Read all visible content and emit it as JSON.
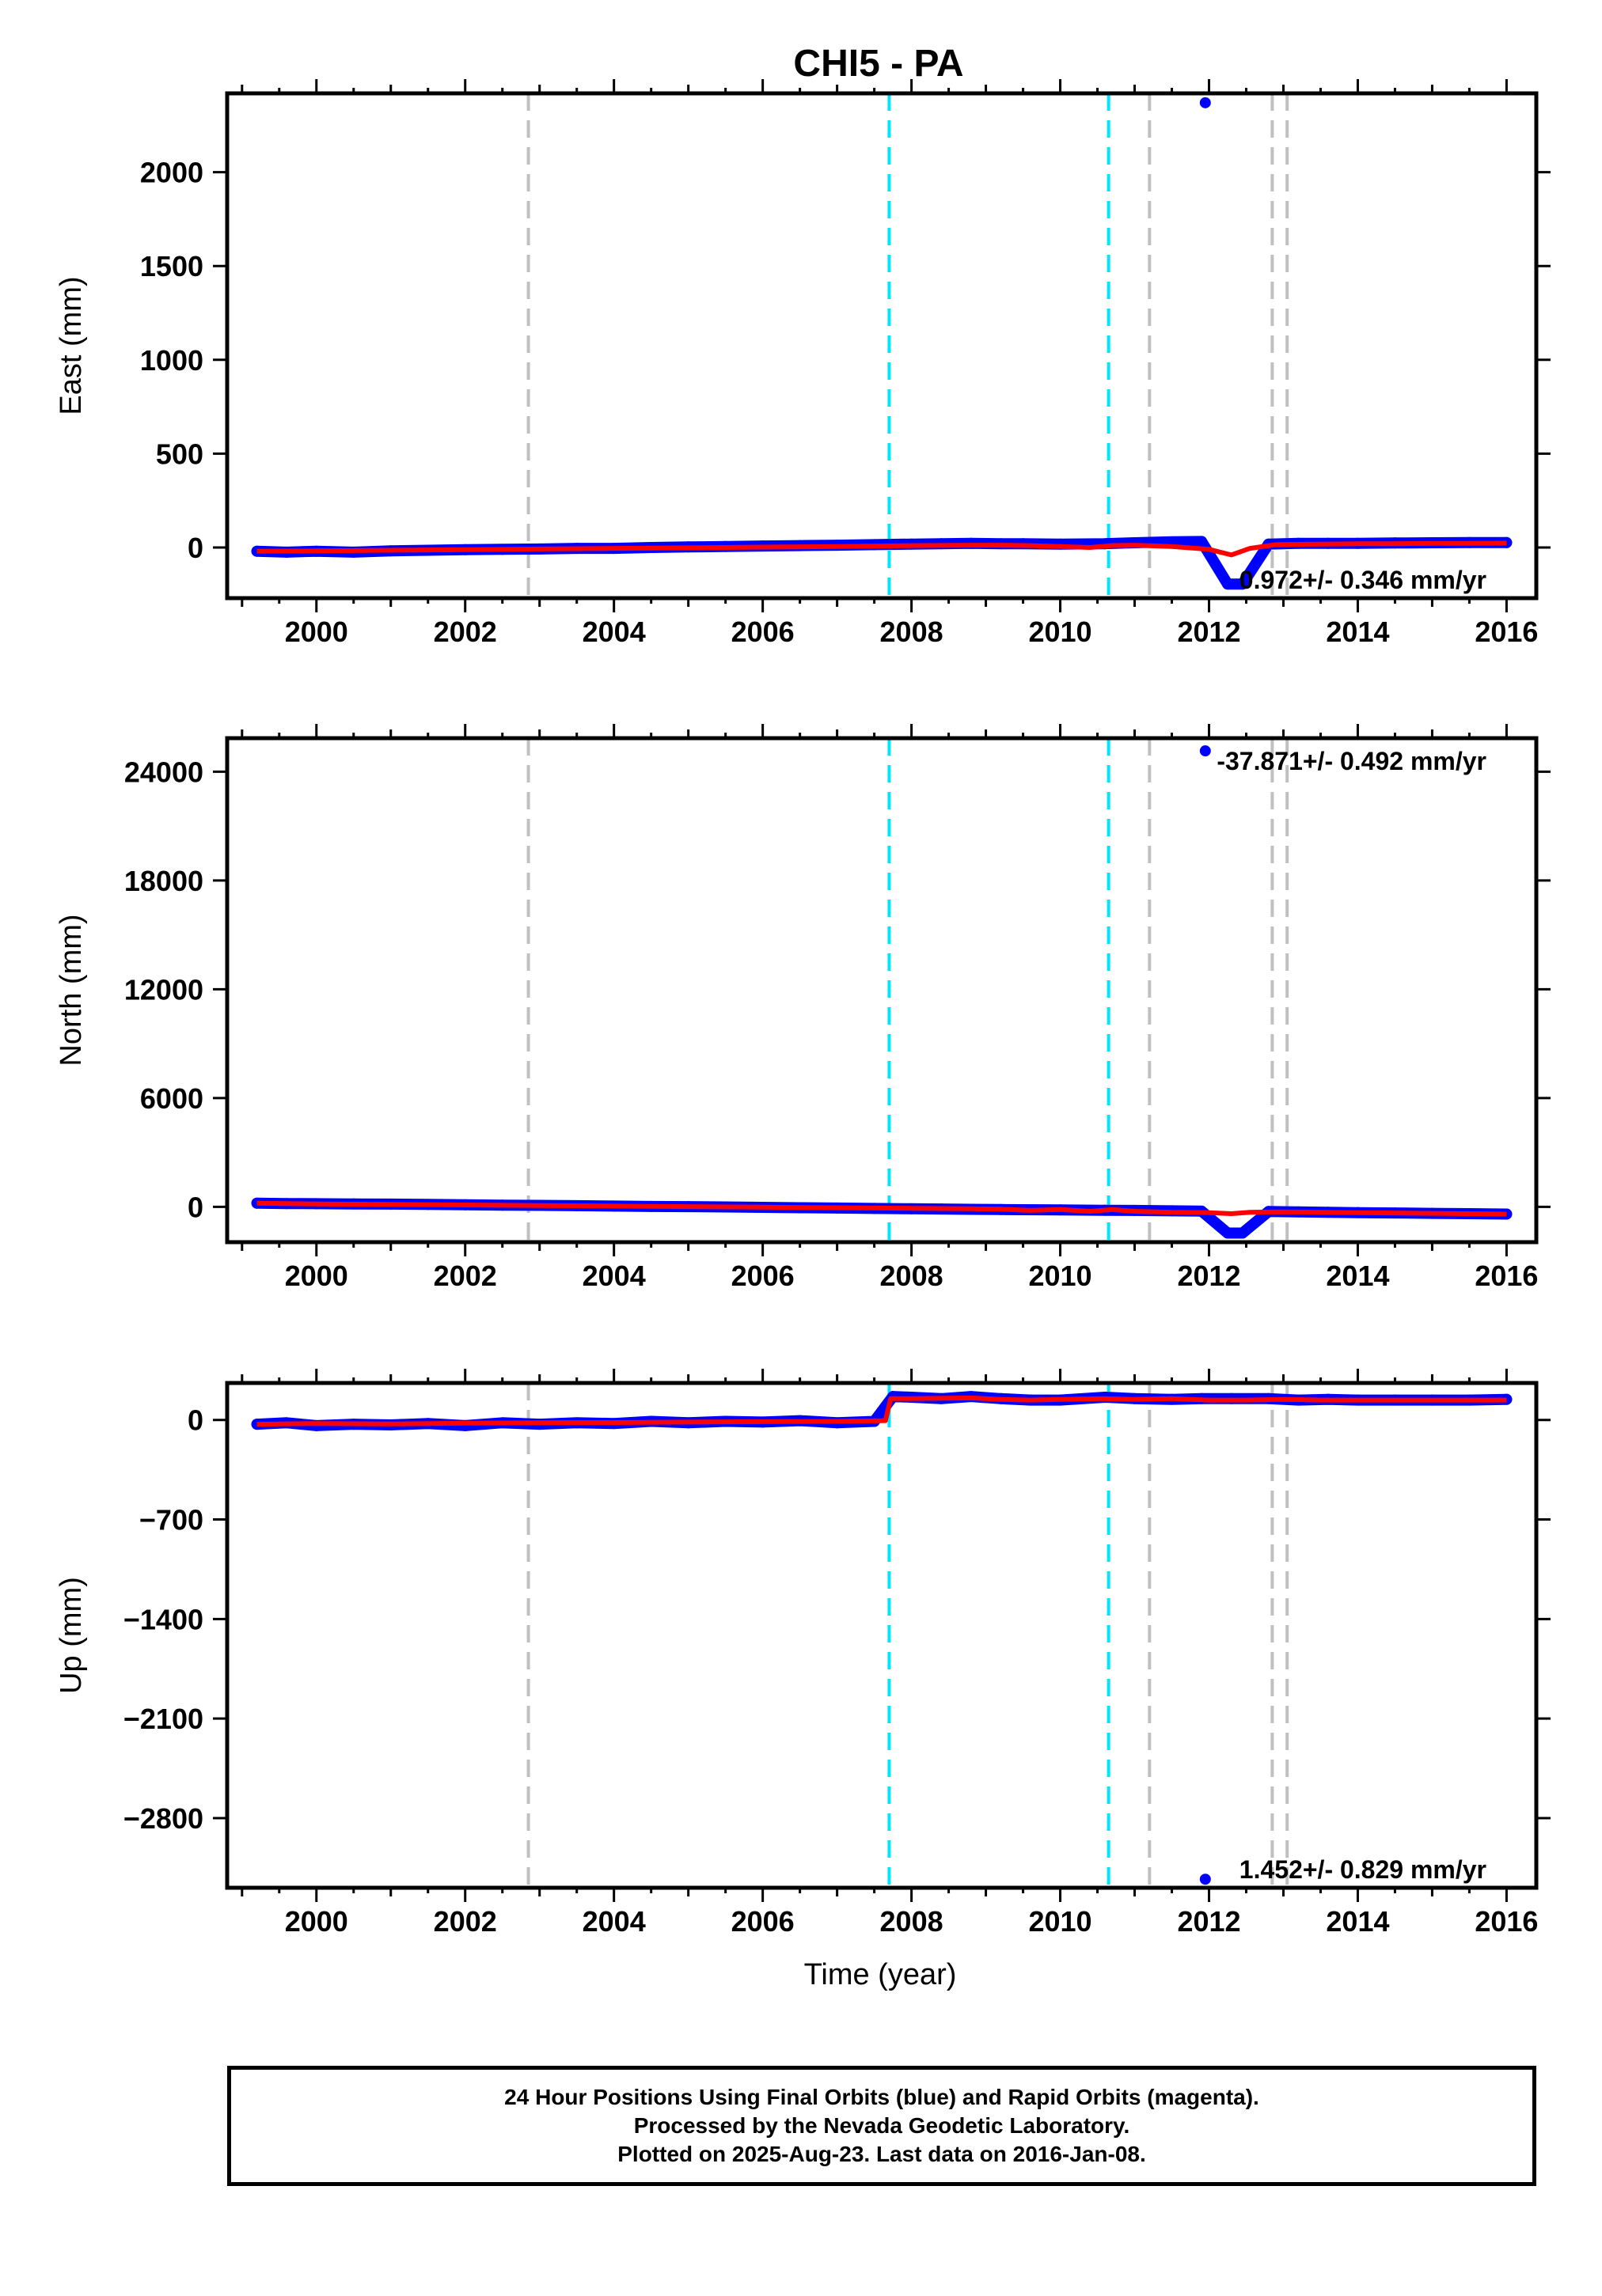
{
  "title": "CHI5 - PA",
  "colors": {
    "final_orbits": "#0000ff",
    "model": "#ff0000",
    "event_cyan": "#00e5ff",
    "event_gray": "#c0c0c0"
  },
  "chart_data": [
    {
      "type": "scatter",
      "ylabel": "East (mm)",
      "xlabel": "",
      "xlim": [
        1998.8,
        2016.4
      ],
      "ylim": [
        -270,
        2420
      ],
      "yticks": [
        0,
        500,
        1000,
        1500,
        2000
      ],
      "ytick_labels": [
        "0",
        "500",
        "1000",
        "1500",
        "2000"
      ],
      "xticks": [
        2000,
        2002,
        2004,
        2006,
        2008,
        2010,
        2012,
        2014,
        2016
      ],
      "xtick_labels": [
        "2000",
        "2002",
        "2004",
        "2006",
        "2008",
        "2010",
        "2012",
        "2014",
        "2016"
      ],
      "annotation": "0.972+/- 0.346 mm/yr",
      "series": [
        {
          "kind": "points",
          "x": [
            1999.2,
            1999.6,
            2000.0,
            2000.5,
            2001.0,
            2001.5,
            2002.0,
            2002.5,
            2003.0,
            2003.5,
            2004.0,
            2004.5,
            2005.0,
            2005.5,
            2006.0,
            2006.5,
            2007.0,
            2007.5,
            2008.0,
            2008.4,
            2008.8,
            2009.2,
            2009.5,
            2010.0,
            2010.6,
            2011.0,
            2011.5,
            2011.9,
            2012.25,
            2012.45,
            2012.8,
            2013.2,
            2013.6,
            2014.0,
            2014.5,
            2015.0,
            2015.5,
            2016.0
          ],
          "y": [
            -20,
            -25,
            -20,
            -25,
            -18,
            -15,
            -12,
            -10,
            -8,
            -5,
            -5,
            0,
            3,
            5,
            8,
            10,
            12,
            15,
            18,
            20,
            22,
            20,
            20,
            18,
            20,
            25,
            30,
            32,
            -195,
            -195,
            18,
            22,
            22,
            22,
            24,
            25,
            26,
            26
          ]
        },
        {
          "kind": "outlier",
          "x": [
            2011.95
          ],
          "y": [
            2370
          ]
        },
        {
          "kind": "model",
          "x": [
            1999.2,
            2000.0,
            2001.0,
            2002.0,
            2003.0,
            2004.0,
            2005.0,
            2006.0,
            2007.0,
            2008.0,
            2008.8,
            2009.2,
            2009.6,
            2010.0,
            2010.4,
            2010.7,
            2011.0,
            2011.5,
            2012.0,
            2012.3,
            2012.55,
            2012.9,
            2013.5,
            2014.0,
            2014.5,
            2015.0,
            2015.5,
            2016.0
          ],
          "y": [
            -20,
            -18,
            -15,
            -12,
            -8,
            -5,
            -2,
            2,
            5,
            10,
            12,
            12,
            10,
            5,
            0,
            10,
            12,
            5,
            -10,
            -40,
            -5,
            15,
            18,
            20,
            20,
            22,
            22,
            23
          ]
        }
      ],
      "events_cyan": [
        2007.7,
        2010.65
      ],
      "events_gray": [
        2002.85,
        2011.2,
        2012.85,
        2013.05
      ]
    },
    {
      "type": "scatter",
      "ylabel": "North (mm)",
      "xlabel": "",
      "xlim": [
        1998.8,
        2016.4
      ],
      "ylim": [
        -1950,
        25850
      ],
      "yticks": [
        0,
        6000,
        12000,
        18000,
        24000
      ],
      "ytick_labels": [
        "0",
        "6000",
        "12000",
        "18000",
        "24000"
      ],
      "xticks": [
        2000,
        2002,
        2004,
        2006,
        2008,
        2010,
        2012,
        2014,
        2016
      ],
      "xtick_labels": [
        "2000",
        "2002",
        "2004",
        "2006",
        "2008",
        "2010",
        "2012",
        "2014",
        "2016"
      ],
      "annotation": "-37.871+/- 0.492 mm/yr",
      "series": [
        {
          "kind": "points",
          "x": [
            1999.2,
            1999.6,
            2000.0,
            2000.5,
            2001.0,
            2001.5,
            2002.0,
            2002.5,
            2003.0,
            2003.5,
            2004.0,
            2004.5,
            2005.0,
            2005.5,
            2006.0,
            2006.5,
            2007.0,
            2007.5,
            2008.0,
            2008.4,
            2008.8,
            2009.2,
            2009.5,
            2010.0,
            2010.6,
            2011.0,
            2011.5,
            2011.9,
            2012.25,
            2012.45,
            2012.8,
            2013.2,
            2013.6,
            2014.0,
            2014.5,
            2015.0,
            2015.5,
            2016.0
          ],
          "y": [
            200,
            180,
            170,
            160,
            150,
            130,
            110,
            90,
            80,
            60,
            40,
            20,
            10,
            -10,
            -30,
            -50,
            -70,
            -90,
            -110,
            -120,
            -140,
            -150,
            -160,
            -170,
            -190,
            -200,
            -220,
            -240,
            -1450,
            -1450,
            -260,
            -280,
            -300,
            -320,
            -340,
            -360,
            -380,
            -400
          ]
        },
        {
          "kind": "outlier",
          "x": [
            2011.95
          ],
          "y": [
            25150
          ]
        },
        {
          "kind": "model",
          "x": [
            1999.2,
            2000.0,
            2001.0,
            2002.0,
            2003.0,
            2004.0,
            2005.0,
            2006.0,
            2007.0,
            2008.0,
            2008.8,
            2009.2,
            2009.6,
            2010.0,
            2010.4,
            2010.7,
            2011.0,
            2011.5,
            2012.0,
            2012.3,
            2012.55,
            2012.9,
            2013.5,
            2014.0,
            2014.5,
            2015.0,
            2015.5,
            2016.0
          ],
          "y": [
            200,
            160,
            130,
            100,
            70,
            40,
            10,
            -20,
            -50,
            -80,
            -110,
            -130,
            -200,
            -150,
            -250,
            -150,
            -250,
            -300,
            -320,
            -380,
            -300,
            -280,
            -300,
            -320,
            -340,
            -360,
            -380,
            -400
          ]
        }
      ],
      "events_cyan": [
        2007.7,
        2010.65
      ],
      "events_gray": [
        2002.85,
        2011.2,
        2012.85,
        2013.05
      ]
    },
    {
      "type": "scatter",
      "ylabel": "Up (mm)",
      "xlabel": "Time (year)",
      "xlim": [
        1998.8,
        2016.4
      ],
      "ylim": [
        -3290,
        260
      ],
      "yticks": [
        0,
        -700,
        -1400,
        -2100,
        -2800
      ],
      "ytick_labels": [
        "0",
        "−700",
        "−1400",
        "−2100",
        "−2800"
      ],
      "xticks": [
        2000,
        2002,
        2004,
        2006,
        2008,
        2010,
        2012,
        2014,
        2016
      ],
      "xtick_labels": [
        "2000",
        "2002",
        "2004",
        "2006",
        "2008",
        "2010",
        "2012",
        "2014",
        "2016"
      ],
      "annotation": "1.452+/- 0.829 mm/yr",
      "series": [
        {
          "kind": "points",
          "x": [
            1999.2,
            1999.6,
            2000.0,
            2000.5,
            2001.0,
            2001.5,
            2002.0,
            2002.5,
            2003.0,
            2003.5,
            2004.0,
            2004.5,
            2005.0,
            2005.5,
            2006.0,
            2006.5,
            2007.0,
            2007.5,
            2007.75,
            2008.0,
            2008.4,
            2008.8,
            2009.2,
            2009.6,
            2010.0,
            2010.6,
            2011.0,
            2011.5,
            2011.9,
            2012.3,
            2012.8,
            2013.2,
            2013.6,
            2014.0,
            2014.5,
            2015.0,
            2015.5,
            2016.0
          ],
          "y": [
            -30,
            -20,
            -40,
            -30,
            -35,
            -25,
            -40,
            -20,
            -30,
            -20,
            -25,
            -10,
            -20,
            -10,
            -15,
            -5,
            -20,
            -10,
            165,
            160,
            150,
            165,
            150,
            140,
            140,
            160,
            150,
            145,
            150,
            150,
            150,
            140,
            145,
            140,
            140,
            140,
            140,
            145
          ]
        },
        {
          "kind": "outlier",
          "x": [
            2011.95
          ],
          "y": [
            -3230
          ]
        },
        {
          "kind": "model",
          "x": [
            1999.2,
            2000.0,
            2001.0,
            2002.0,
            2003.0,
            2004.0,
            2005.0,
            2006.0,
            2007.0,
            2007.65,
            2007.72,
            2008.0,
            2008.8,
            2009.2,
            2009.6,
            2010.0,
            2010.6,
            2011.0,
            2011.5,
            2012.0,
            2012.5,
            2013.0,
            2013.5,
            2014.0,
            2014.5,
            2015.0,
            2015.5,
            2016.0
          ],
          "y": [
            -30,
            -25,
            -28,
            -22,
            -20,
            -18,
            -15,
            -12,
            -10,
            -5,
            150,
            150,
            155,
            145,
            140,
            145,
            150,
            145,
            150,
            140,
            140,
            145,
            140,
            140,
            140,
            140,
            140,
            140
          ]
        }
      ],
      "events_cyan": [
        2007.7,
        2010.65
      ],
      "events_gray": [
        2002.85,
        2011.2,
        2012.85,
        2013.05
      ]
    }
  ],
  "footer": {
    "line1": "24 Hour Positions Using Final Orbits (blue) and Rapid Orbits (magenta).",
    "line2": "Processed by the Nevada Geodetic Laboratory.",
    "line3": "Plotted on 2025-Aug-23. Last data on 2016-Jan-08."
  }
}
